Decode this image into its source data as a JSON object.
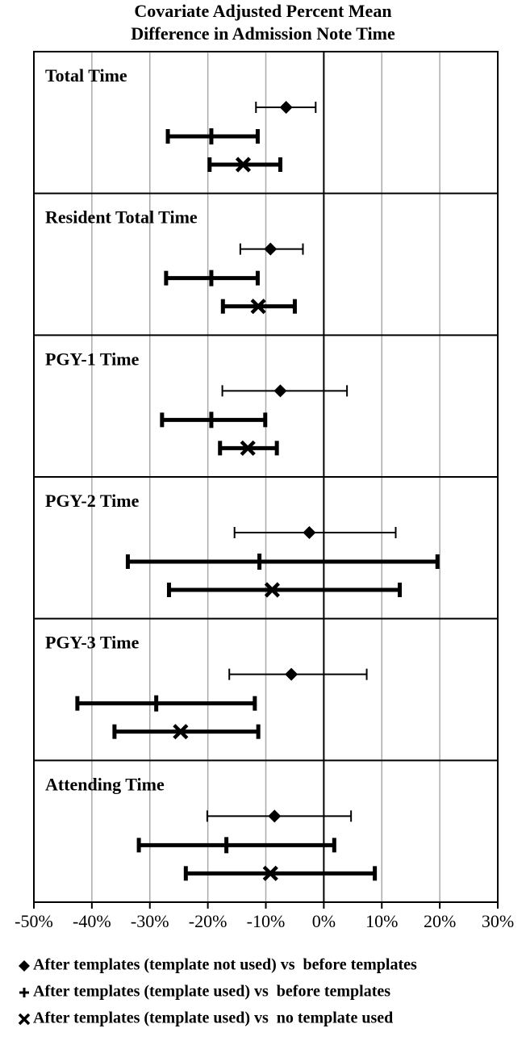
{
  "chart_data": {
    "type": "forest",
    "title": [
      "Covariate Adjusted Percent Mean",
      "Difference in Admission Note Time"
    ],
    "categories": [
      "Total Time",
      "Resident Total Time",
      "PGY-1 Time",
      "PGY-2 Time",
      "PGY-3 Time",
      "Attending Time"
    ],
    "series": [
      {
        "name": "After templates (template not used) vs  before templates",
        "marker": "diamond",
        "color": "#000000",
        "values": [
          -6.5,
          -9.2,
          -7.5,
          -2.5,
          -5.6,
          -8.5
        ],
        "low": [
          -11.7,
          -14.4,
          -17.5,
          -15.4,
          -16.3,
          -20.1
        ],
        "high": [
          -1.4,
          -3.6,
          4.0,
          12.4,
          7.4,
          4.7
        ]
      },
      {
        "name": "After templates (template used) vs  before templates",
        "marker": "plus",
        "color": "#000000",
        "values": [
          -19.4,
          -19.4,
          -19.4,
          -11.1,
          -28.9,
          -16.8
        ],
        "low": [
          -26.9,
          -27.2,
          -27.9,
          -33.8,
          -42.5,
          -31.9
        ],
        "high": [
          -11.4,
          -11.4,
          -10.1,
          19.6,
          -11.9,
          1.8
        ]
      },
      {
        "name": "After templates (template used) vs  no template used",
        "marker": "x",
        "color": "#000000",
        "values": [
          -13.9,
          -11.3,
          -13.1,
          -8.9,
          -24.7,
          -9.2
        ],
        "low": [
          -19.7,
          -17.4,
          -17.9,
          -26.7,
          -36.1,
          -23.8
        ],
        "high": [
          -7.5,
          -5.0,
          -8.1,
          13.1,
          -11.3,
          8.8
        ]
      }
    ],
    "xlim": [
      -50,
      30
    ],
    "xticks": [
      {
        "value": -50,
        "label": "-50%"
      },
      {
        "value": -40,
        "label": "-40%"
      },
      {
        "value": -30,
        "label": "-30%"
      },
      {
        "value": -20,
        "label": "-20%"
      },
      {
        "value": -10,
        "label": "-10%"
      },
      {
        "value": 0,
        "label": "0%"
      },
      {
        "value": 10,
        "label": "10%"
      },
      {
        "value": 20,
        "label": "20%"
      },
      {
        "value": 30,
        "label": "30%"
      }
    ],
    "grid": true
  }
}
